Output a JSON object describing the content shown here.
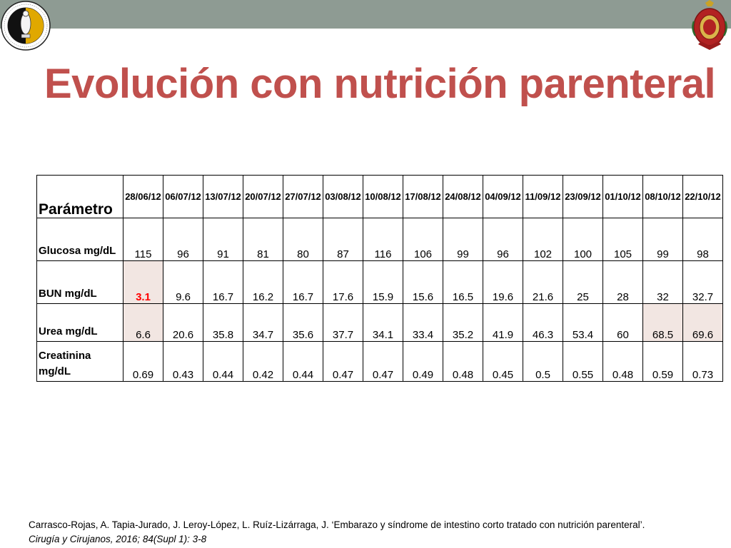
{
  "slide": {
    "title": "Evolución con nutrición parenteral",
    "colors": {
      "title": "#c0504d",
      "top_bar": "#8e9b93",
      "highlight_cell": "#f2e6e2",
      "alert_value": "#ff0000"
    },
    "logos": {
      "left": {
        "icon": "academia-nacional-medicina-seal-icon",
        "text": "ACADEMIA NACIONAL DE MEDICINA · MÉXICO"
      },
      "right": {
        "icon": "red-coat-of-arms-crest-icon"
      }
    }
  },
  "table": {
    "header_param": "Parámetro",
    "dates": [
      "28/06/12",
      "06/07/12",
      "13/07/12",
      "20/07/12",
      "27/07/12",
      "03/08/12",
      "10/08/12",
      "17/08/12",
      "24/08/12",
      "04/09/12",
      "11/09/12",
      "23/09/12",
      "01/10/12",
      "08/10/12",
      "22/10/12"
    ],
    "rows": [
      {
        "label": "Glucosa mg/dL",
        "values": [
          "115",
          "96",
          "91",
          "81",
          "80",
          "87",
          "116",
          "106",
          "99",
          "96",
          "102",
          "100",
          "105",
          "99",
          "98"
        ]
      },
      {
        "label": "BUN  mg/dL",
        "values": [
          "3.1",
          "9.6",
          "16.7",
          "16.2",
          "16.7",
          "17.6",
          "15.9",
          "15.6",
          "16.5",
          "19.6",
          "21.6",
          "25",
          "28",
          "32",
          "32.7"
        ]
      },
      {
        "label": "Urea  mg/dL",
        "values": [
          "6.6",
          "20.6",
          "35.8",
          "34.7",
          "35.6",
          "37.7",
          "34.1",
          "33.4",
          "35.2",
          "41.9",
          "46.3",
          "53.4",
          "60",
          "68.5",
          "69.6"
        ]
      },
      {
        "label": "Creatinina mg/dL",
        "values": [
          "0.69",
          "0.43",
          "0.44",
          "0.42",
          "0.44",
          "0.47",
          "0.47",
          "0.49",
          "0.48",
          "0.45",
          "0.5",
          "0.55",
          "0.48",
          "0.59",
          "0.73"
        ]
      }
    ]
  },
  "reference": {
    "authors": "Carrasco-Rojas, A. Tapia-Jurado, J. Leroy-López, L. Ruíz-Lizárraga, J. ‘Embarazo y síndrome de intestino corto tratado con nutrición parenteral’.",
    "journal": "Cirugía y Cirujanos, 2016; 84(Supl 1): 3-8"
  }
}
